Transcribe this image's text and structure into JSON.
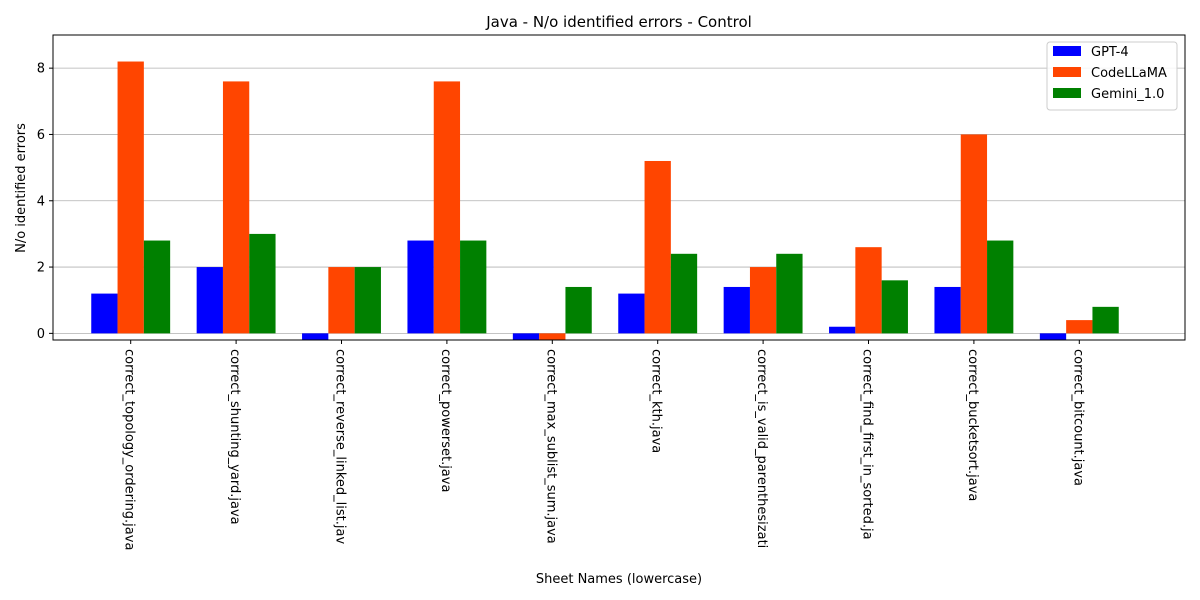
{
  "chart_data": {
    "type": "bar",
    "title": "Java - N/o identified errors - Control",
    "xlabel": "Sheet Names (lowercase)",
    "ylabel": "N/o identified errors",
    "categories": [
      "correct_topology_ordering.java",
      "correct_shunting_yard.java",
      "correct_reverse_linked_list.jav",
      "correct_powerset.java",
      "correct_max_sublist_sum.java",
      "correct_kth.java",
      "correct_is_valid_parenthesizati",
      "correct_find_first_in_sorted.ja",
      "correct_bucketsort.java",
      "correct_bitcount.java"
    ],
    "series": [
      {
        "name": "GPT-4",
        "color": "#0000ff",
        "values": [
          1.2,
          2.0,
          0.0,
          2.8,
          0.0,
          1.2,
          1.4,
          0.2,
          1.4,
          0.0
        ]
      },
      {
        "name": "CodeLLaMA",
        "color": "#ff4500",
        "values": [
          8.2,
          7.6,
          2.0,
          7.6,
          0.0,
          5.2,
          2.0,
          2.6,
          6.0,
          0.4
        ]
      },
      {
        "name": "Gemini_1.0",
        "color": "#008000",
        "values": [
          2.8,
          3.0,
          2.0,
          2.8,
          1.4,
          2.4,
          2.4,
          1.6,
          2.8,
          0.8
        ]
      }
    ],
    "ylim": [
      -0.2,
      9.0
    ],
    "yticks": [
      0,
      2,
      4,
      6,
      8
    ],
    "grid": "y",
    "legend": "top-right"
  }
}
